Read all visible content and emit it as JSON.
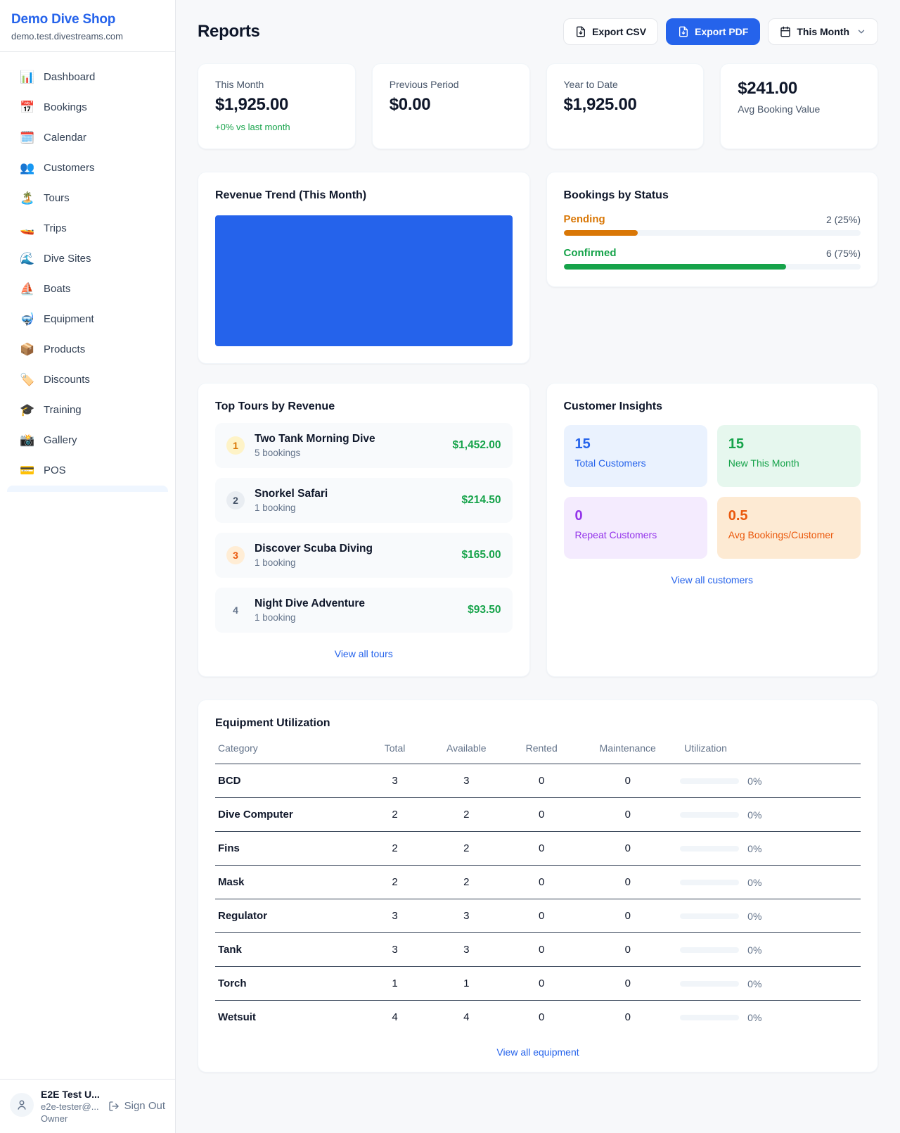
{
  "sidebar": {
    "shop_name": "Demo Dive Shop",
    "domain": "demo.test.divestreams.com",
    "items": [
      {
        "icon": "📊",
        "label": "Dashboard"
      },
      {
        "icon": "📅",
        "label": "Bookings"
      },
      {
        "icon": "🗓️",
        "label": "Calendar"
      },
      {
        "icon": "👥",
        "label": "Customers"
      },
      {
        "icon": "🏝️",
        "label": "Tours"
      },
      {
        "icon": "🚤",
        "label": "Trips"
      },
      {
        "icon": "🌊",
        "label": "Dive Sites"
      },
      {
        "icon": "⛵",
        "label": "Boats"
      },
      {
        "icon": "🤿",
        "label": "Equipment"
      },
      {
        "icon": "📦",
        "label": "Products"
      },
      {
        "icon": "🏷️",
        "label": "Discounts"
      },
      {
        "icon": "🎓",
        "label": "Training"
      },
      {
        "icon": "📸",
        "label": "Gallery"
      },
      {
        "icon": "💳",
        "label": "POS"
      }
    ],
    "user": {
      "name": "E2E Test U...",
      "email": "e2e-tester@...",
      "role": "Owner",
      "sign_out_label": "Sign Out"
    }
  },
  "header": {
    "title": "Reports",
    "export_csv_label": "Export CSV",
    "export_pdf_label": "Export PDF",
    "period_label": "This Month"
  },
  "stats": [
    {
      "label": "This Month",
      "value": "$1,925.00",
      "note": "+0% vs last month"
    },
    {
      "label": "Previous Period",
      "value": "$0.00"
    },
    {
      "label": "Year to Date",
      "value": "$1,925.00"
    },
    {
      "label": "Avg Booking Value",
      "value": "$241.00"
    }
  ],
  "revenue_trend": {
    "title": "Revenue Trend (This Month)",
    "bar_color": "#2563eb"
  },
  "bookings_by_status": {
    "title": "Bookings by Status",
    "rows": [
      {
        "label": "Pending",
        "count_text": "2 (25%)",
        "percent": 25,
        "color": "#d97706"
      },
      {
        "label": "Confirmed",
        "count_text": "6 (75%)",
        "percent": 75,
        "color": "#16a34a"
      }
    ]
  },
  "top_tours": {
    "title": "Top Tours by Revenue",
    "view_all_label": "View all tours",
    "items": [
      {
        "rank": "1",
        "name": "Two Tank Morning Dive",
        "bookings": "5 bookings",
        "revenue": "$1,452.00"
      },
      {
        "rank": "2",
        "name": "Snorkel Safari",
        "bookings": "1 booking",
        "revenue": "$214.50"
      },
      {
        "rank": "3",
        "name": "Discover Scuba Diving",
        "bookings": "1 booking",
        "revenue": "$165.00"
      },
      {
        "rank": "4",
        "name": "Night Dive Adventure",
        "bookings": "1 booking",
        "revenue": "$93.50"
      }
    ]
  },
  "customer_insights": {
    "title": "Customer Insights",
    "view_all_label": "View all customers",
    "tiles": [
      {
        "value": "15",
        "label": "Total Customers",
        "color": "#2563eb"
      },
      {
        "value": "15",
        "label": "New This Month",
        "color": "#16a34a"
      },
      {
        "value": "0",
        "label": "Repeat Customers",
        "color": "#9333ea"
      },
      {
        "value": "0.5",
        "label": "Avg Bookings/Customer",
        "color": "#ea580c"
      }
    ]
  },
  "equipment": {
    "title": "Equipment Utilization",
    "view_all_label": "View all equipment",
    "columns": [
      "Category",
      "Total",
      "Available",
      "Rented",
      "Maintenance",
      "Utilization"
    ],
    "rows": [
      {
        "category": "BCD",
        "total": "3",
        "available": "3",
        "rented": "0",
        "maintenance": "0",
        "utilization_text": "0%",
        "utilization_pct": 0
      },
      {
        "category": "Dive Computer",
        "total": "2",
        "available": "2",
        "rented": "0",
        "maintenance": "0",
        "utilization_text": "0%",
        "utilization_pct": 0
      },
      {
        "category": "Fins",
        "total": "2",
        "available": "2",
        "rented": "0",
        "maintenance": "0",
        "utilization_text": "0%",
        "utilization_pct": 0
      },
      {
        "category": "Mask",
        "total": "2",
        "available": "2",
        "rented": "0",
        "maintenance": "0",
        "utilization_text": "0%",
        "utilization_pct": 0
      },
      {
        "category": "Regulator",
        "total": "3",
        "available": "3",
        "rented": "0",
        "maintenance": "0",
        "utilization_text": "0%",
        "utilization_pct": 0
      },
      {
        "category": "Tank",
        "total": "3",
        "available": "3",
        "rented": "0",
        "maintenance": "0",
        "utilization_text": "0%",
        "utilization_pct": 0
      },
      {
        "category": "Torch",
        "total": "1",
        "available": "1",
        "rented": "0",
        "maintenance": "0",
        "utilization_text": "0%",
        "utilization_pct": 0
      },
      {
        "category": "Wetsuit",
        "total": "4",
        "available": "4",
        "rented": "0",
        "maintenance": "0",
        "utilization_text": "0%",
        "utilization_pct": 0
      }
    ]
  }
}
